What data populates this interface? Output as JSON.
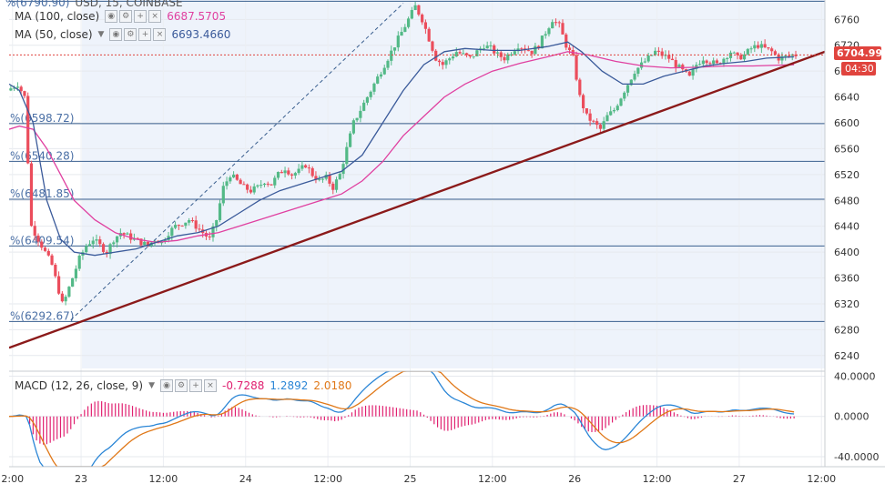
{
  "header": {
    "symbol_partial": "USD, 15, COINBASE"
  },
  "legends": {
    "ma100": {
      "label": "MA (100, close)",
      "value": "6687.5705",
      "color": "#e040a0"
    },
    "ma50": {
      "label": "MA (50, close)",
      "value": "6693.4660",
      "color": "#3a5a9a"
    },
    "macd": {
      "label": "MACD (12, 26, close, 9)",
      "v1": "-0.7288",
      "v2": "1.2892",
      "v3": "2.0180",
      "c1": "#e02070",
      "c2": "#2b86d6",
      "c3": "#e07818"
    }
  },
  "price_tag": {
    "value": "6704.99",
    "countdown": "04:30",
    "color": "#e0443e"
  },
  "fib_levels": [
    {
      "label": "%(6598.72)",
      "value": 6598.72
    },
    {
      "label": "%(6540.28)",
      "value": 6540.28
    },
    {
      "label": "%(6481.85)",
      "value": 6481.85
    },
    {
      "label": "%(6409.54)",
      "value": 6409.54
    },
    {
      "label": "%(6292.67)",
      "value": 6292.67
    }
  ],
  "top_fib_label": "%(6790.90)",
  "chart_data": {
    "type": "candlestick",
    "price_axis": {
      "min": 6220,
      "max": 6790,
      "ticks": [
        6760,
        6720,
        6680,
        6640,
        6600,
        6560,
        6520,
        6480,
        6440,
        6400,
        6360,
        6320,
        6280,
        6240
      ]
    },
    "macd_axis": {
      "min": -50,
      "max": 45,
      "ticks": [
        "40.0000",
        "0.0000",
        "-40.0000"
      ],
      "tick_values": [
        40,
        0,
        -40
      ]
    },
    "x_axis": {
      "labels": [
        "2:00",
        "23",
        "12:00",
        "24",
        "12:00",
        "25",
        "12:00",
        "26",
        "12:00",
        "27",
        "12:00"
      ],
      "hours": [
        -10,
        0,
        12,
        24,
        36,
        48,
        60,
        72,
        84,
        96,
        108
      ]
    },
    "price_path": [
      [
        -10.5,
        6650
      ],
      [
        -9,
        6660
      ],
      [
        -8,
        6640
      ],
      [
        -7.5,
        6540
      ],
      [
        -7,
        6440
      ],
      [
        -6,
        6420
      ],
      [
        -5,
        6400
      ],
      [
        -4,
        6380
      ],
      [
        -3,
        6340
      ],
      [
        -2.5,
        6320
      ],
      [
        -2,
        6330
      ],
      [
        -1,
        6360
      ],
      [
        0,
        6390
      ],
      [
        1,
        6410
      ],
      [
        2,
        6420
      ],
      [
        3,
        6410
      ],
      [
        4,
        6400
      ],
      [
        5,
        6420
      ],
      [
        6,
        6430
      ],
      [
        7,
        6425
      ],
      [
        8,
        6420
      ],
      [
        9,
        6415
      ],
      [
        10,
        6410
      ],
      [
        11,
        6420
      ],
      [
        12,
        6415
      ],
      [
        13,
        6430
      ],
      [
        14,
        6440
      ],
      [
        15,
        6445
      ],
      [
        16,
        6450
      ],
      [
        17,
        6440
      ],
      [
        18,
        6430
      ],
      [
        19,
        6420
      ],
      [
        20,
        6450
      ],
      [
        21,
        6500
      ],
      [
        22,
        6520
      ],
      [
        23,
        6510
      ],
      [
        24,
        6500
      ],
      [
        25,
        6495
      ],
      [
        26,
        6500
      ],
      [
        27,
        6510
      ],
      [
        28,
        6505
      ],
      [
        29,
        6520
      ],
      [
        30,
        6530
      ],
      [
        31,
        6520
      ],
      [
        32,
        6525
      ],
      [
        33,
        6535
      ],
      [
        34,
        6520
      ],
      [
        35,
        6510
      ],
      [
        36,
        6515
      ],
      [
        37,
        6500
      ],
      [
        38,
        6520
      ],
      [
        39,
        6560
      ],
      [
        40,
        6600
      ],
      [
        41,
        6620
      ],
      [
        42,
        6640
      ],
      [
        43,
        6660
      ],
      [
        44,
        6680
      ],
      [
        45,
        6700
      ],
      [
        46,
        6720
      ],
      [
        47,
        6740
      ],
      [
        48,
        6760
      ],
      [
        49,
        6780
      ],
      [
        50,
        6760
      ],
      [
        51,
        6730
      ],
      [
        52,
        6700
      ],
      [
        53,
        6690
      ],
      [
        54,
        6700
      ],
      [
        55,
        6710
      ],
      [
        56,
        6705
      ],
      [
        57,
        6700
      ],
      [
        58,
        6710
      ],
      [
        59,
        6720
      ],
      [
        60,
        6715
      ],
      [
        61,
        6705
      ],
      [
        62,
        6700
      ],
      [
        63,
        6710
      ],
      [
        64,
        6720
      ],
      [
        65,
        6715
      ],
      [
        66,
        6710
      ],
      [
        67,
        6720
      ],
      [
        68,
        6740
      ],
      [
        69,
        6760
      ],
      [
        70,
        6750
      ],
      [
        71,
        6720
      ],
      [
        72,
        6700
      ],
      [
        73,
        6640
      ],
      [
        74,
        6610
      ],
      [
        75,
        6600
      ],
      [
        76,
        6590
      ],
      [
        77,
        6610
      ],
      [
        78,
        6620
      ],
      [
        79,
        6640
      ],
      [
        80,
        6660
      ],
      [
        81,
        6680
      ],
      [
        82,
        6690
      ],
      [
        83,
        6700
      ],
      [
        84,
        6710
      ],
      [
        85,
        6705
      ],
      [
        86,
        6700
      ],
      [
        87,
        6690
      ],
      [
        88,
        6680
      ],
      [
        89,
        6670
      ],
      [
        90,
        6690
      ],
      [
        91,
        6700
      ],
      [
        92,
        6695
      ],
      [
        93,
        6690
      ],
      [
        94,
        6700
      ],
      [
        95,
        6710
      ],
      [
        96,
        6700
      ],
      [
        97,
        6705
      ],
      [
        98,
        6715
      ],
      [
        99,
        6720
      ],
      [
        100,
        6715
      ],
      [
        101,
        6710
      ],
      [
        102,
        6700
      ],
      [
        103,
        6702
      ],
      [
        104,
        6705
      ]
    ],
    "ma50_path": [
      [
        -10.5,
        6660
      ],
      [
        -9,
        6650
      ],
      [
        -7,
        6600
      ],
      [
        -5,
        6480
      ],
      [
        -3,
        6420
      ],
      [
        -1,
        6400
      ],
      [
        2,
        6395
      ],
      [
        5,
        6400
      ],
      [
        8,
        6405
      ],
      [
        11,
        6415
      ],
      [
        14,
        6425
      ],
      [
        17,
        6430
      ],
      [
        20,
        6440
      ],
      [
        23,
        6460
      ],
      [
        26,
        6480
      ],
      [
        29,
        6495
      ],
      [
        32,
        6505
      ],
      [
        35,
        6515
      ],
      [
        38,
        6525
      ],
      [
        41,
        6550
      ],
      [
        44,
        6600
      ],
      [
        47,
        6650
      ],
      [
        50,
        6690
      ],
      [
        53,
        6710
      ],
      [
        56,
        6715
      ],
      [
        60,
        6712
      ],
      [
        64,
        6712
      ],
      [
        68,
        6718
      ],
      [
        71,
        6725
      ],
      [
        73,
        6710
      ],
      [
        76,
        6680
      ],
      [
        79,
        6660
      ],
      [
        82,
        6660
      ],
      [
        85,
        6672
      ],
      [
        88,
        6680
      ],
      [
        91,
        6688
      ],
      [
        94,
        6692
      ],
      [
        97,
        6695
      ],
      [
        100,
        6700
      ],
      [
        104,
        6702
      ]
    ],
    "ma100_path": [
      [
        -10.5,
        6590
      ],
      [
        -9,
        6595
      ],
      [
        -7,
        6590
      ],
      [
        -5,
        6560
      ],
      [
        -3,
        6520
      ],
      [
        -1,
        6480
      ],
      [
        2,
        6450
      ],
      [
        5,
        6430
      ],
      [
        8,
        6420
      ],
      [
        11,
        6415
      ],
      [
        14,
        6418
      ],
      [
        17,
        6425
      ],
      [
        20,
        6430
      ],
      [
        23,
        6440
      ],
      [
        26,
        6450
      ],
      [
        29,
        6460
      ],
      [
        32,
        6470
      ],
      [
        35,
        6480
      ],
      [
        38,
        6490
      ],
      [
        41,
        6510
      ],
      [
        44,
        6540
      ],
      [
        47,
        6580
      ],
      [
        50,
        6610
      ],
      [
        53,
        6640
      ],
      [
        56,
        6660
      ],
      [
        60,
        6680
      ],
      [
        64,
        6692
      ],
      [
        68,
        6702
      ],
      [
        71,
        6710
      ],
      [
        74,
        6705
      ],
      [
        78,
        6695
      ],
      [
        82,
        6688
      ],
      [
        86,
        6685
      ],
      [
        90,
        6686
      ],
      [
        94,
        6688
      ],
      [
        98,
        6688
      ],
      [
        104,
        6690
      ]
    ],
    "trendline": {
      "from": [
        -10.5,
        6252
      ],
      "to": [
        108.5,
        6710
      ]
    },
    "projection": {
      "from": [
        -1.5,
        6295
      ],
      "to": [
        47,
        6785
      ]
    },
    "last_price_level": 6704.99
  }
}
